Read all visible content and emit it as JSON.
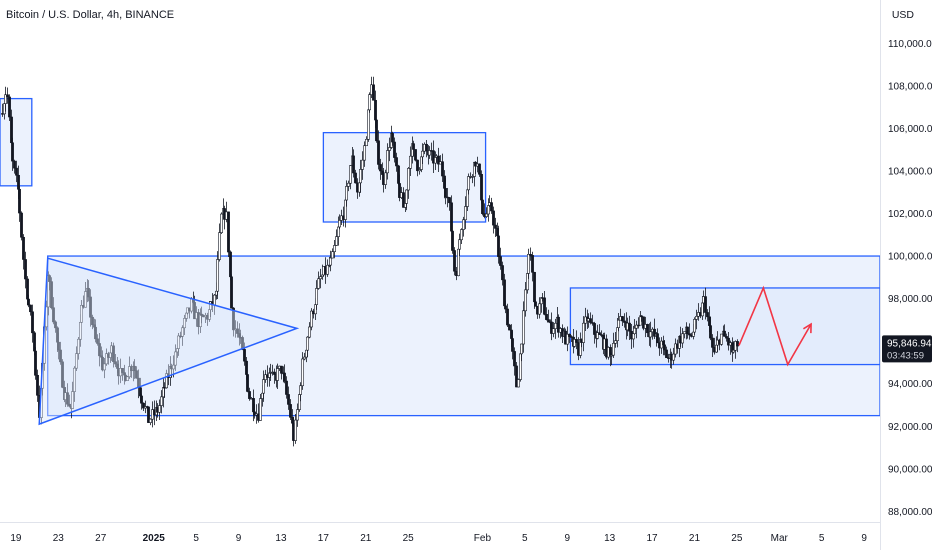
{
  "header": {
    "symbol_title": "Bitcoin / U.S. Dollar, 4h, BINANCE",
    "currency_label": "USD"
  },
  "colors": {
    "box_fill": "#dce7fb",
    "box_stroke": "#2962ff",
    "candle": "#131722",
    "projection": "#f23645",
    "price_tag": "#131722",
    "axis_text": "#131722"
  },
  "chart_data": {
    "type": "candlestick",
    "title": "Bitcoin / U.S. Dollar, 4h, BINANCE",
    "ylim": [
      87500,
      111000
    ],
    "y_ticks": [
      "110,000.00",
      "108,000.00",
      "106,000.00",
      "104,000.00",
      "102,000.00",
      "100,000.00",
      "98,000.00",
      "96,000.00",
      "94,000.00",
      "92,000.00",
      "90,000.00",
      "88,000.00"
    ],
    "y_tick_values": [
      110000,
      108000,
      106000,
      104000,
      102000,
      100000,
      98000,
      96000,
      94000,
      92000,
      90000,
      88000
    ],
    "x_ticks": [
      "19",
      "23",
      "27",
      "2025",
      "5",
      "9",
      "13",
      "17",
      "21",
      "25",
      "Feb",
      "5",
      "9",
      "13",
      "17",
      "21",
      "25",
      "Mar",
      "5",
      "9"
    ],
    "x_tick_days": [
      0,
      4,
      8,
      13,
      17,
      21,
      25,
      29,
      33,
      37,
      44,
      48,
      52,
      56,
      60,
      64,
      68,
      72,
      76,
      80
    ],
    "x_range_days": [
      -1.5,
      81.5
    ],
    "start_date": "2024-12-19",
    "last_price": "95,846.94",
    "countdown": "03:43:59",
    "price_path": [
      [
        -1.5,
        106700
      ],
      [
        -0.9,
        107900
      ],
      [
        -0.4,
        104500
      ],
      [
        0.2,
        103000
      ],
      [
        0.8,
        99000
      ],
      [
        1.5,
        96500
      ],
      [
        2.2,
        92400
      ],
      [
        3.0,
        99200
      ],
      [
        3.8,
        96000
      ],
      [
        4.5,
        93600
      ],
      [
        5.2,
        92800
      ],
      [
        6.0,
        97200
      ],
      [
        6.6,
        98400
      ],
      [
        7.4,
        96200
      ],
      [
        8.2,
        94800
      ],
      [
        9.0,
        95600
      ],
      [
        10.0,
        94200
      ],
      [
        11.0,
        95000
      ],
      [
        11.8,
        93400
      ],
      [
        12.5,
        92300
      ],
      [
        13.4,
        92800
      ],
      [
        14.2,
        94200
      ],
      [
        15.0,
        95400
      ],
      [
        15.8,
        96800
      ],
      [
        16.5,
        97700
      ],
      [
        17.2,
        96900
      ],
      [
        18.0,
        97200
      ],
      [
        18.8,
        98100
      ],
      [
        19.3,
        101800
      ],
      [
        19.8,
        102100
      ],
      [
        20.4,
        97000
      ],
      [
        21.2,
        95800
      ],
      [
        22.0,
        93400
      ],
      [
        22.8,
        92500
      ],
      [
        23.4,
        94600
      ],
      [
        24.2,
        94200
      ],
      [
        25.0,
        94700
      ],
      [
        25.6,
        93200
      ],
      [
        26.2,
        91400
      ],
      [
        27.0,
        94900
      ],
      [
        27.8,
        97100
      ],
      [
        28.6,
        98900
      ],
      [
        29.2,
        99300
      ],
      [
        29.8,
        99800
      ],
      [
        30.4,
        101400
      ],
      [
        31.0,
        102300
      ],
      [
        31.6,
        104700
      ],
      [
        32.2,
        103000
      ],
      [
        32.9,
        105300
      ],
      [
        33.5,
        108300
      ],
      [
        34.0,
        105100
      ],
      [
        34.6,
        103400
      ],
      [
        35.3,
        105800
      ],
      [
        36.0,
        103300
      ],
      [
        36.6,
        102100
      ],
      [
        37.2,
        105200
      ],
      [
        37.9,
        104200
      ],
      [
        38.5,
        105000
      ],
      [
        39.2,
        104600
      ],
      [
        40.0,
        104300
      ],
      [
        40.8,
        102400
      ],
      [
        41.4,
        99000
      ],
      [
        42.0,
        101500
      ],
      [
        42.7,
        103700
      ],
      [
        43.4,
        104600
      ],
      [
        44.1,
        101800
      ],
      [
        44.8,
        102300
      ],
      [
        45.4,
        100500
      ],
      [
        46.0,
        98000
      ],
      [
        46.6,
        96200
      ],
      [
        47.2,
        93800
      ],
      [
        47.8,
        96900
      ],
      [
        48.4,
        100500
      ],
      [
        49.0,
        97300
      ],
      [
        49.6,
        97900
      ],
      [
        50.3,
        96600
      ],
      [
        51.0,
        96900
      ],
      [
        51.8,
        96100
      ],
      [
        52.4,
        95900
      ],
      [
        53.0,
        95600
      ],
      [
        53.8,
        97100
      ],
      [
        54.5,
        96400
      ],
      [
        55.2,
        96100
      ],
      [
        56.0,
        95200
      ],
      [
        56.7,
        96800
      ],
      [
        57.4,
        97000
      ],
      [
        58.1,
        96100
      ],
      [
        58.8,
        97200
      ],
      [
        59.5,
        96600
      ],
      [
        60.2,
        96200
      ],
      [
        60.9,
        95700
      ],
      [
        61.6,
        95100
      ],
      [
        62.3,
        95900
      ],
      [
        63.0,
        96400
      ],
      [
        63.7,
        96300
      ],
      [
        64.4,
        97200
      ],
      [
        64.9,
        98000
      ],
      [
        65.3,
        96600
      ],
      [
        65.8,
        95300
      ],
      [
        66.4,
        96300
      ],
      [
        67.0,
        96100
      ],
      [
        67.6,
        95400
      ],
      [
        68.0,
        95850
      ]
    ],
    "boxes": [
      {
        "x": [
          -1.5,
          1.5
        ],
        "y": [
          103300,
          107400
        ]
      },
      {
        "x": [
          29.0,
          44.3
        ],
        "y": [
          101600,
          105800
        ]
      },
      {
        "x": [
          3.0,
          81.5
        ],
        "y": [
          92500,
          100000
        ]
      },
      {
        "x": [
          52.3,
          81.5
        ],
        "y": [
          94900,
          98500
        ]
      }
    ],
    "triangle": [
      [
        2.2,
        92100
      ],
      [
        3.0,
        99900
      ],
      [
        26.5,
        96600
      ]
    ],
    "projection": [
      [
        68.2,
        95800
      ],
      [
        70.5,
        98500
      ],
      [
        72.8,
        94900
      ],
      [
        75.0,
        96800
      ]
    ],
    "grid": false,
    "legend": "none"
  }
}
